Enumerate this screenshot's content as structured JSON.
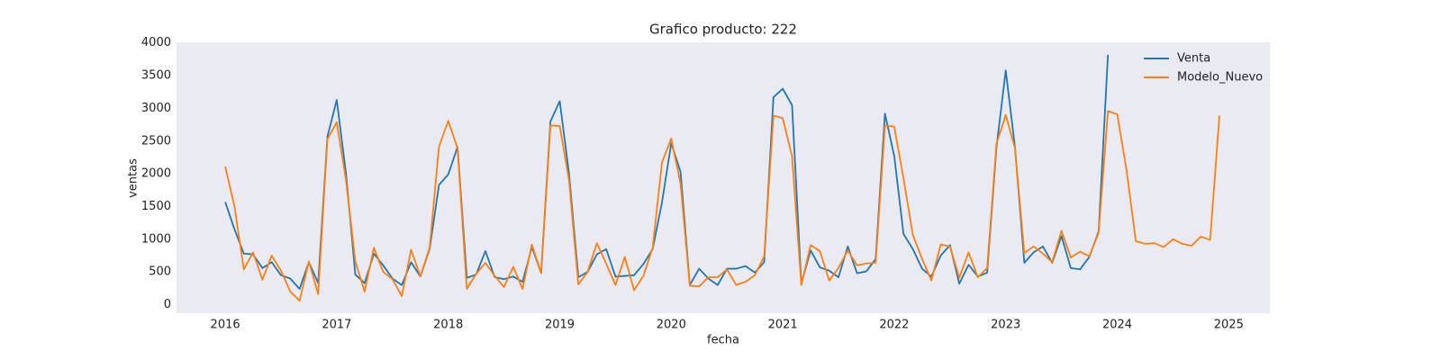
{
  "chart_data": {
    "type": "line",
    "title": "Grafico producto: 222",
    "x_label": "fecha",
    "y_label": "ventas",
    "x": [
      "2016-01",
      "2016-02",
      "2016-03",
      "2016-04",
      "2016-05",
      "2016-06",
      "2016-07",
      "2016-08",
      "2016-09",
      "2016-10",
      "2016-11",
      "2016-12",
      "2017-01",
      "2017-02",
      "2017-03",
      "2017-04",
      "2017-05",
      "2017-06",
      "2017-07",
      "2017-08",
      "2017-09",
      "2017-10",
      "2017-11",
      "2017-12",
      "2018-01",
      "2018-02",
      "2018-03",
      "2018-04",
      "2018-05",
      "2018-06",
      "2018-07",
      "2018-08",
      "2018-09",
      "2018-10",
      "2018-11",
      "2018-12",
      "2019-01",
      "2019-02",
      "2019-03",
      "2019-04",
      "2019-05",
      "2019-06",
      "2019-07",
      "2019-08",
      "2019-09",
      "2019-10",
      "2019-11",
      "2019-12",
      "2020-01",
      "2020-02",
      "2020-03",
      "2020-04",
      "2020-05",
      "2020-06",
      "2020-07",
      "2020-08",
      "2020-09",
      "2020-10",
      "2020-11",
      "2020-12",
      "2021-01",
      "2021-02",
      "2021-03",
      "2021-04",
      "2021-05",
      "2021-06",
      "2021-07",
      "2021-08",
      "2021-09",
      "2021-10",
      "2021-11",
      "2021-12",
      "2022-01",
      "2022-02",
      "2022-03",
      "2022-04",
      "2022-05",
      "2022-06",
      "2022-07",
      "2022-08",
      "2022-09",
      "2022-10",
      "2022-11",
      "2022-12",
      "2023-01",
      "2023-02",
      "2023-03",
      "2023-04",
      "2023-05",
      "2023-06",
      "2023-07",
      "2023-08",
      "2023-09",
      "2023-10",
      "2023-11",
      "2023-12",
      "2024-01",
      "2024-02",
      "2024-03",
      "2024-04",
      "2024-05",
      "2024-06",
      "2024-07",
      "2024-08",
      "2024-09",
      "2024-10",
      "2024-11",
      "2024-12"
    ],
    "series": [
      {
        "name": "Venta",
        "color": "#1f77b4",
        "values": [
          1570,
          1150,
          780,
          770,
          560,
          650,
          450,
          400,
          240,
          650,
          330,
          2570,
          3130,
          2000,
          460,
          330,
          780,
          600,
          400,
          300,
          650,
          430,
          850,
          1830,
          1990,
          2410,
          410,
          460,
          820,
          420,
          390,
          430,
          350,
          880,
          490,
          2800,
          3110,
          2000,
          420,
          500,
          770,
          850,
          430,
          440,
          450,
          620,
          850,
          1560,
          2470,
          2030,
          300,
          550,
          400,
          300,
          550,
          550,
          590,
          490,
          650,
          3170,
          3300,
          3050,
          320,
          830,
          570,
          520,
          420,
          890,
          480,
          510,
          700,
          2920,
          2270,
          1080,
          850,
          550,
          430,
          750,
          910,
          320,
          610,
          430,
          490,
          2400,
          3580,
          2400,
          640,
          800,
          890,
          640,
          1050,
          560,
          540,
          730,
          1120,
          3820,
          null,
          null,
          null,
          null,
          null,
          null,
          null,
          null,
          null,
          null,
          null,
          null
        ]
      },
      {
        "name": "Modelo_Nuevo",
        "color": "#ff7f0e",
        "values": [
          2110,
          1500,
          540,
          800,
          380,
          750,
          520,
          200,
          60,
          660,
          160,
          2530,
          2790,
          1900,
          660,
          200,
          870,
          500,
          390,
          130,
          840,
          430,
          870,
          2410,
          2810,
          2390,
          240,
          470,
          640,
          440,
          270,
          580,
          240,
          920,
          480,
          2740,
          2730,
          1900,
          310,
          500,
          940,
          630,
          300,
          730,
          220,
          440,
          870,
          2170,
          2540,
          1850,
          290,
          280,
          420,
          420,
          540,
          300,
          350,
          450,
          740,
          2890,
          2850,
          2270,
          300,
          910,
          820,
          370,
          560,
          830,
          600,
          630,
          640,
          2740,
          2720,
          1930,
          1070,
          700,
          370,
          920,
          890,
          410,
          800,
          420,
          560,
          2460,
          2900,
          2390,
          790,
          890,
          780,
          650,
          1130,
          720,
          810,
          740,
          1100,
          2960,
          2910,
          2060,
          970,
          930,
          940,
          880,
          1000,
          930,
          900,
          1040,
          990,
          2890
        ]
      }
    ],
    "xlim": [
      "2015-07-24",
      "2025-05-14"
    ],
    "xticks": [
      {
        "value": "2016-01",
        "label": "2016"
      },
      {
        "value": "2017-01",
        "label": "2017"
      },
      {
        "value": "2018-01",
        "label": "2018"
      },
      {
        "value": "2019-01",
        "label": "2019"
      },
      {
        "value": "2020-01",
        "label": "2020"
      },
      {
        "value": "2021-01",
        "label": "2021"
      },
      {
        "value": "2022-01",
        "label": "2022"
      },
      {
        "value": "2023-01",
        "label": "2023"
      },
      {
        "value": "2024-01",
        "label": "2024"
      },
      {
        "value": "2025-01",
        "label": "2025"
      }
    ],
    "ylim": [
      -130,
      4010
    ],
    "yticks": [
      0,
      500,
      1000,
      1500,
      2000,
      2500,
      3000,
      3500,
      4000
    ],
    "grid": false,
    "legend": "upper right",
    "background": "#eaeaf2"
  }
}
